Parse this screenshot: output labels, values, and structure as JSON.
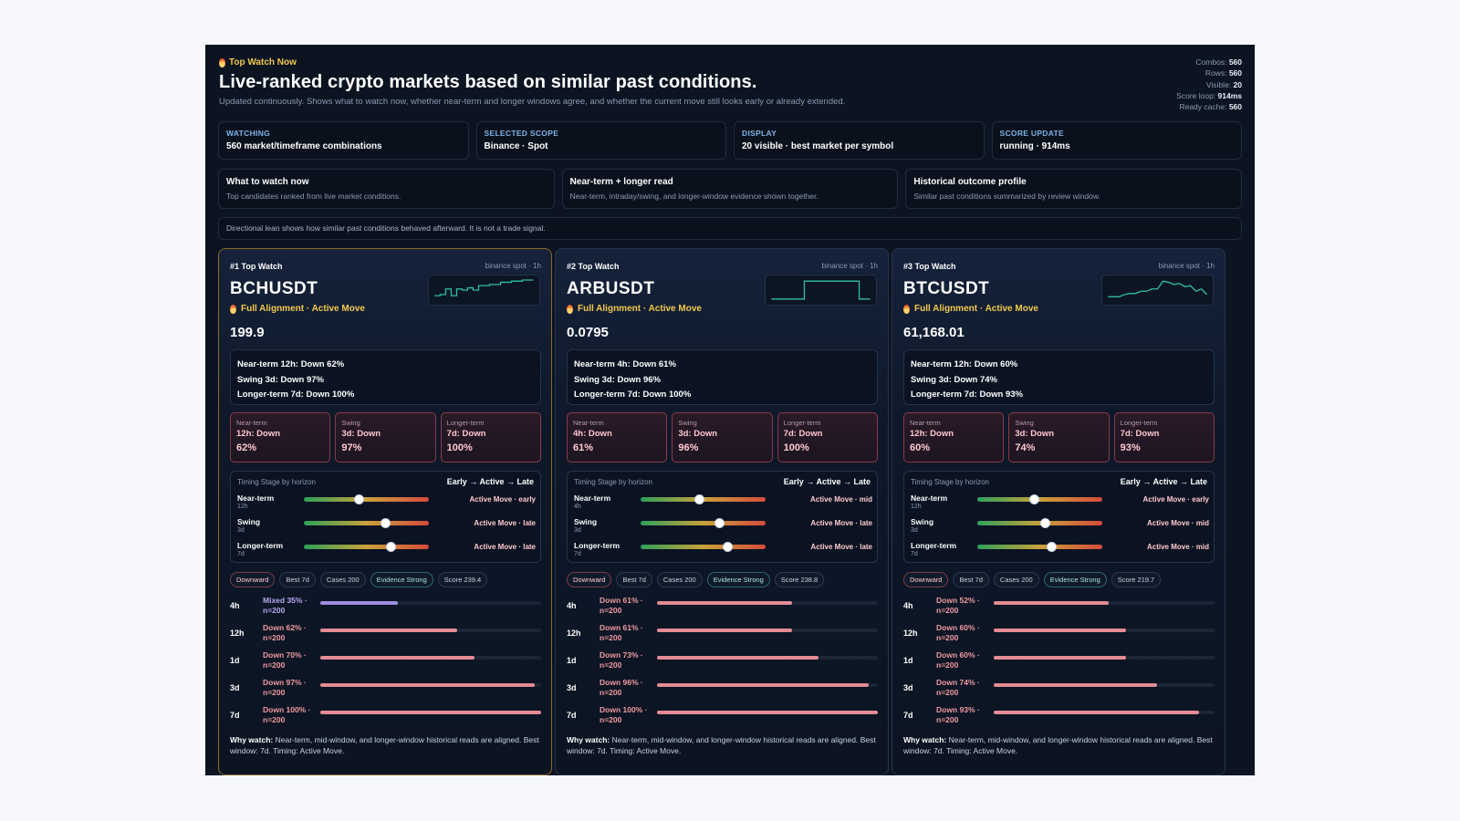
{
  "header": {
    "eyebrow": "Top Watch Now",
    "title": "Live-ranked crypto markets based on similar past conditions.",
    "subtitle": "Updated continuously. Shows what to watch now, whether near-term and longer windows agree, and whether the current move still looks early or already extended."
  },
  "stats": [
    {
      "label": "Combos:",
      "value": "560"
    },
    {
      "label": "Rows:",
      "value": "560"
    },
    {
      "label": "Visible:",
      "value": "20"
    },
    {
      "label": "Score loop:",
      "value": "914ms"
    },
    {
      "label": "Ready cache:",
      "value": "560"
    }
  ],
  "kpis": [
    {
      "label": "WATCHING",
      "value": "560 market/timeframe combinations"
    },
    {
      "label": "SELECTED SCOPE",
      "value": "Binance · Spot"
    },
    {
      "label": "DISPLAY",
      "value": "20 visible · best market per symbol"
    },
    {
      "label": "SCORE UPDATE",
      "value": "running · 914ms"
    }
  ],
  "features": [
    {
      "title": "What to watch now",
      "desc": "Top candidates ranked from live market conditions."
    },
    {
      "title": "Near-term + longer read",
      "desc": "Near-term, intraday/swing, and longer-window evidence shown together."
    },
    {
      "title": "Historical outcome profile",
      "desc": "Similar past conditions summarized by review window."
    }
  ],
  "note": "Directional lean shows how similar past conditions behaved afterward. It is not a trade signal.",
  "cards": [
    {
      "rank": "#1 Top Watch",
      "source": "binance spot · 1h",
      "symbol": "BCHUSDT",
      "alignment": "Full Alignment · Active Move",
      "price": "199.9",
      "spark": [
        0.25,
        0.3,
        0.55,
        0.25,
        0.55,
        0.5,
        0.6,
        0.5,
        0.7,
        0.7,
        0.75,
        0.75,
        0.85,
        0.85,
        0.9,
        0.9,
        0.95,
        0.95,
        0.95
      ],
      "horizons": [
        "Near-term 12h: Down 62%",
        "Swing 3d: Down 97%",
        "Longer-term 7d: Down 100%"
      ],
      "tiles": [
        {
          "label": "Near-term",
          "window": "12h: Down",
          "pct": "62%"
        },
        {
          "label": "Swing",
          "window": "3d: Down",
          "pct": "97%"
        },
        {
          "label": "Longer-term",
          "window": "7d: Down",
          "pct": "100%"
        }
      ],
      "timing_title": "Timing Stage by horizon",
      "timing_legend": "Early → Active → Late",
      "timing": [
        {
          "name": "Near-term",
          "sub": "12h",
          "pos": 0.44,
          "stage": "Active Move · early"
        },
        {
          "name": "Swing",
          "sub": "3d",
          "pos": 0.65,
          "stage": "Active Move · late"
        },
        {
          "name": "Longer-term",
          "sub": "7d",
          "pos": 0.69,
          "stage": "Active Move · late"
        }
      ],
      "chips": [
        "Downward",
        "Best 7d",
        "Cases 200",
        "Evidence Strong",
        "Score 239.4"
      ],
      "windows": [
        {
          "label": "4h",
          "line1": "Mixed 35% ·",
          "line2": "n=200",
          "value": 0.35,
          "mixed": true
        },
        {
          "label": "12h",
          "line1": "Down 62% ·",
          "line2": "n=200",
          "value": 0.62
        },
        {
          "label": "1d",
          "line1": "Down 70% ·",
          "line2": "n=200",
          "value": 0.7
        },
        {
          "label": "3d",
          "line1": "Down 97% ·",
          "line2": "n=200",
          "value": 0.97
        },
        {
          "label": "7d",
          "line1": "Down 100% ·",
          "line2": "n=200",
          "value": 1.0
        }
      ],
      "why_label": "Why watch:",
      "why": " Near-term, mid-window, and longer-window historical reads are aligned. Best window: 7d. Timing: Active Move."
    },
    {
      "rank": "#2 Top Watch",
      "source": "binance spot · 1h",
      "symbol": "ARBUSDT",
      "alignment": "Full Alignment · Active Move",
      "price": "0.0795",
      "spark": [
        0.1,
        0.1,
        0.1,
        0.1,
        0.1,
        0.1,
        0.9,
        0.9,
        0.9,
        0.9,
        0.9,
        0.9,
        0.9,
        0.9,
        0.9,
        0.9,
        0.1,
        0.1,
        0.1
      ],
      "horizons": [
        "Near-term 4h: Down 61%",
        "Swing 3d: Down 96%",
        "Longer-term 7d: Down 100%"
      ],
      "tiles": [
        {
          "label": "Near-term",
          "window": "4h: Down",
          "pct": "61%"
        },
        {
          "label": "Swing",
          "window": "3d: Down",
          "pct": "96%"
        },
        {
          "label": "Longer-term",
          "window": "7d: Down",
          "pct": "100%"
        }
      ],
      "timing_title": "Timing Stage by horizon",
      "timing_legend": "Early → Active → Late",
      "timing": [
        {
          "name": "Near-term",
          "sub": "4h",
          "pos": 0.47,
          "stage": "Active Move · mid"
        },
        {
          "name": "Swing",
          "sub": "3d",
          "pos": 0.63,
          "stage": "Active Move · late"
        },
        {
          "name": "Longer-term",
          "sub": "7d",
          "pos": 0.69,
          "stage": "Active Move · late"
        }
      ],
      "chips": [
        "Downward",
        "Best 7d",
        "Cases 200",
        "Evidence Strong",
        "Score 238.8"
      ],
      "windows": [
        {
          "label": "4h",
          "line1": "Down 61% ·",
          "line2": "n=200",
          "value": 0.61
        },
        {
          "label": "12h",
          "line1": "Down 61% ·",
          "line2": "n=200",
          "value": 0.61
        },
        {
          "label": "1d",
          "line1": "Down 73% ·",
          "line2": "n=200",
          "value": 0.73
        },
        {
          "label": "3d",
          "line1": "Down 96% ·",
          "line2": "n=200",
          "value": 0.96
        },
        {
          "label": "7d",
          "line1": "Down 100% ·",
          "line2": "n=200",
          "value": 1.0
        }
      ],
      "why_label": "Why watch:",
      "why": " Near-term, mid-window, and longer-window historical reads are aligned. Best window: 7d. Timing: Active Move."
    },
    {
      "rank": "#3 Top Watch",
      "source": "binance spot · 1h",
      "symbol": "BTCUSDT",
      "alignment": "Full Alignment · Active Move",
      "price": "61,168.01",
      "spark": [
        0.2,
        0.2,
        0.2,
        0.3,
        0.35,
        0.35,
        0.45,
        0.45,
        0.55,
        0.55,
        0.9,
        0.85,
        0.75,
        0.8,
        0.65,
        0.7,
        0.45,
        0.55,
        0.3
      ],
      "horizons": [
        "Near-term 12h: Down 60%",
        "Swing 3d: Down 74%",
        "Longer-term 7d: Down 93%"
      ],
      "tiles": [
        {
          "label": "Near-term",
          "window": "12h: Down",
          "pct": "60%"
        },
        {
          "label": "Swing",
          "window": "3d: Down",
          "pct": "74%"
        },
        {
          "label": "Longer-term",
          "window": "7d: Down",
          "pct": "93%"
        }
      ],
      "timing_title": "Timing Stage by horizon",
      "timing_legend": "Early → Active → Late",
      "timing": [
        {
          "name": "Near-term",
          "sub": "12h",
          "pos": 0.45,
          "stage": "Active Move · early"
        },
        {
          "name": "Swing",
          "sub": "3d",
          "pos": 0.54,
          "stage": "Active Move · mid"
        },
        {
          "name": "Longer-term",
          "sub": "7d",
          "pos": 0.59,
          "stage": "Active Move · mid"
        }
      ],
      "chips": [
        "Downward",
        "Best 7d",
        "Cases 200",
        "Evidence Strong",
        "Score 219.7"
      ],
      "windows": [
        {
          "label": "4h",
          "line1": "Down 52% ·",
          "line2": "n=200",
          "value": 0.52
        },
        {
          "label": "12h",
          "line1": "Down 60% ·",
          "line2": "n=200",
          "value": 0.6
        },
        {
          "label": "1d",
          "line1": "Down 60% ·",
          "line2": "n=200",
          "value": 0.6
        },
        {
          "label": "3d",
          "line1": "Down 74% ·",
          "line2": "n=200",
          "value": 0.74
        },
        {
          "label": "7d",
          "line1": "Down 93% ·",
          "line2": "n=200",
          "value": 0.93
        }
      ],
      "why_label": "Why watch:",
      "why": " Near-term, mid-window, and longer-window historical reads are aligned. Best window: 7d. Timing: Active Move."
    }
  ],
  "colors": {
    "background": "#0c1422",
    "accent_gold": "#f2c94c",
    "down": "#e48b95",
    "mixed": "#9d8fe0",
    "spark": "#2fbf9a"
  }
}
